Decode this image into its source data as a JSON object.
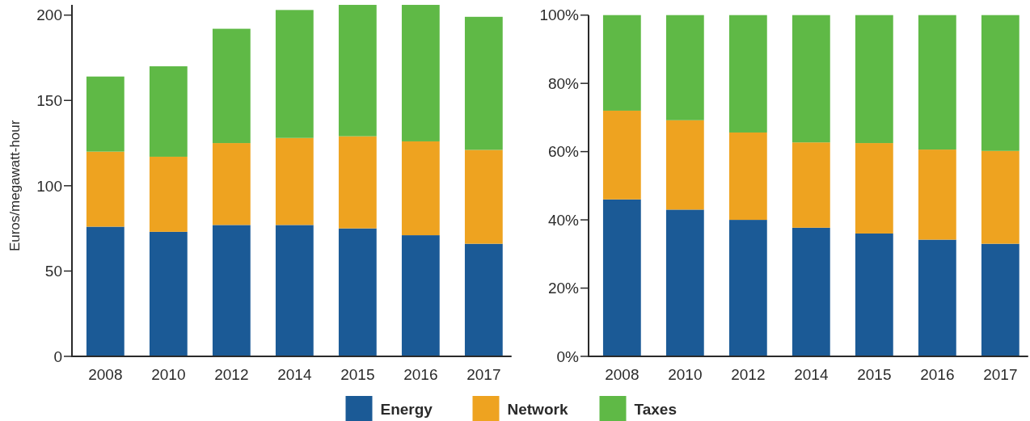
{
  "chart_data": [
    {
      "type": "bar",
      "stacked": true,
      "categories": [
        "2008",
        "2010",
        "2012",
        "2014",
        "2015",
        "2016",
        "2017"
      ],
      "ylabel": "Euros/megawatt-hour",
      "ylim": [
        0,
        206
      ],
      "yticks": [
        0,
        50,
        100,
        150,
        200
      ],
      "legend": "bottom",
      "series": [
        {
          "name": "Energy",
          "color": "#1b5a96",
          "values": [
            76,
            73,
            77,
            77,
            75,
            71,
            66
          ]
        },
        {
          "name": "Network",
          "color": "#eea320",
          "values": [
            44,
            44,
            48,
            51,
            54,
            55,
            55
          ]
        },
        {
          "name": "Taxes",
          "color": "#5fb946",
          "values": [
            44,
            53,
            67,
            75,
            77,
            80,
            78
          ]
        }
      ]
    },
    {
      "type": "bar",
      "stacked": true,
      "categories": [
        "2008",
        "2010",
        "2012",
        "2014",
        "2015",
        "2016",
        "2017"
      ],
      "ylim": [
        0,
        100
      ],
      "yticks": [
        {
          "value": 0,
          "label": "0%"
        },
        {
          "value": 20,
          "label": "20%"
        },
        {
          "value": 40,
          "label": "40%"
        },
        {
          "value": 60,
          "label": "60%"
        },
        {
          "value": 80,
          "label": "80%"
        },
        {
          "value": 100,
          "label": "100%"
        }
      ],
      "series": [
        {
          "color": "#1b5a96",
          "values": [
            46,
            43,
            40,
            37.7,
            36,
            34.2,
            33
          ]
        },
        {
          "color": "#eea320",
          "values": [
            26,
            26.2,
            25.6,
            25,
            26.5,
            26.4,
            27.2
          ]
        },
        {
          "color": "#5fb946",
          "values": [
            28,
            30.8,
            34.4,
            37.3,
            37.5,
            39.4,
            39.8
          ]
        }
      ]
    }
  ]
}
